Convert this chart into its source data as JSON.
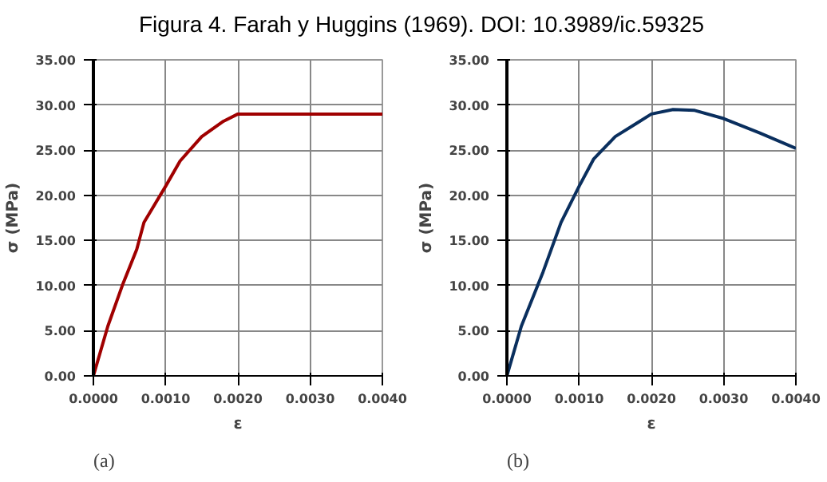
{
  "chart_data": [
    {
      "type": "line",
      "title": "Figura 4. Farah y Huggins (1969). DOI: 10.3989/ic.59325",
      "xlabel": "ε",
      "ylabel": "σ (MPa)",
      "annotations": [
        "(a)"
      ],
      "series": [
        {
          "color": "#a00000",
          "x": [
            0,
            0.0002,
            0.0004,
            0.0006,
            0.0007,
            0.001,
            0.0012,
            0.0015,
            0.0018,
            0.002,
            0.004
          ],
          "values": [
            0,
            5.5,
            10,
            14,
            17,
            21,
            23.8,
            26.5,
            28.2,
            29,
            29
          ]
        }
      ],
      "xlim": [
        0,
        0.004
      ],
      "ylim": [
        0,
        35
      ],
      "grid": true,
      "marker": "none",
      "line_style": "solid",
      "xticks": [
        {
          "value": 0,
          "label": "0.0000"
        },
        {
          "value": 0.001,
          "label": "0.0010"
        },
        {
          "value": 0.002,
          "label": "0.0020"
        },
        {
          "value": 0.003,
          "label": "0.0030"
        },
        {
          "value": 0.004,
          "label": "0.0040"
        }
      ],
      "yticks": [
        {
          "value": 0,
          "label": "0.00"
        },
        {
          "value": 5,
          "label": "5.00"
        },
        {
          "value": 10,
          "label": "10.00"
        },
        {
          "value": 15,
          "label": "15.00"
        },
        {
          "value": 20,
          "label": "20.00"
        },
        {
          "value": 25,
          "label": "25.00"
        },
        {
          "value": 30,
          "label": "30.00"
        },
        {
          "value": 35,
          "label": "35.00"
        }
      ]
    },
    {
      "type": "line",
      "xlabel": "ε",
      "ylabel": "σ (MPa)",
      "annotations": [
        "(b)"
      ],
      "series": [
        {
          "color": "#0a2f5e",
          "x": [
            0,
            0.0002,
            0.0005,
            0.00075,
            0.001,
            0.0012,
            0.0015,
            0.0018,
            0.002,
            0.0023,
            0.0026,
            0.003,
            0.0035,
            0.004
          ],
          "values": [
            0,
            5.5,
            11.5,
            17,
            21,
            24,
            26.5,
            28,
            29,
            29.5,
            29.4,
            28.5,
            26.9,
            25.2
          ]
        }
      ],
      "xlim": [
        0,
        0.004
      ],
      "ylim": [
        0,
        35
      ],
      "grid": true,
      "marker": "none",
      "line_style": "solid",
      "xticks": [
        {
          "value": 0,
          "label": "0.0000"
        },
        {
          "value": 0.001,
          "label": "0.0010"
        },
        {
          "value": 0.002,
          "label": "0.0020"
        },
        {
          "value": 0.003,
          "label": "0.0030"
        },
        {
          "value": 0.004,
          "label": "0.0040"
        }
      ],
      "yticks": [
        {
          "value": 0,
          "label": "0.00"
        },
        {
          "value": 5,
          "label": "5.00"
        },
        {
          "value": 10,
          "label": "10.00"
        },
        {
          "value": 15,
          "label": "15.00"
        },
        {
          "value": 20,
          "label": "20.00"
        },
        {
          "value": 25,
          "label": "25.00"
        },
        {
          "value": 30,
          "label": "30.00"
        },
        {
          "value": 35,
          "label": "35.00"
        }
      ]
    }
  ]
}
